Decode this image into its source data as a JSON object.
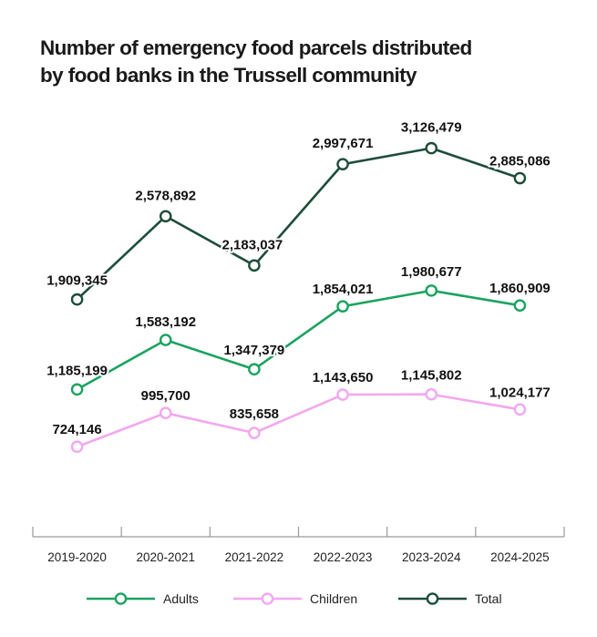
{
  "chart_data": {
    "type": "line",
    "title": "Number of emergency food parcels distributed by food banks in the Trussell community",
    "title_lines": [
      "Number of emergency food parcels distributed",
      "by food banks in the Trussell community"
    ],
    "xlabel": "",
    "ylabel": "",
    "ylim": [
      0,
      4000000
    ],
    "grid": false,
    "categories": [
      "2019-2020",
      "2020-2021",
      "2021-2022",
      "2022-2023",
      "2023-2024",
      "2024-2025"
    ],
    "series": [
      {
        "name": "Total",
        "color": "#1d4d3a",
        "values": [
          1909345,
          2578892,
          2183037,
          2997671,
          3126479,
          2885086
        ],
        "labels": [
          "1,909,345",
          "2,578,892",
          "2,183,037",
          "2,997,671",
          "3,126,479",
          "2,885,086"
        ]
      },
      {
        "name": "Adults",
        "color": "#1aa35f",
        "values": [
          1185199,
          1583192,
          1347379,
          1854021,
          1980677,
          1860909
        ],
        "labels": [
          "1,185,199",
          "1,583,192",
          "1,347,379",
          "1,854,021",
          "1,980,677",
          "1,860,909"
        ]
      },
      {
        "name": "Children",
        "color": "#f2a8ef",
        "values": [
          724146,
          995700,
          835658,
          1143650,
          1145802,
          1024177
        ],
        "labels": [
          "724,146",
          "995,700",
          "835,658",
          "1,143,650",
          "1,145,802",
          "1,024,177"
        ]
      }
    ],
    "legend": {
      "position": "bottom",
      "order": [
        "Adults",
        "Children",
        "Total"
      ]
    },
    "axis_color": "#9a9a9a"
  }
}
